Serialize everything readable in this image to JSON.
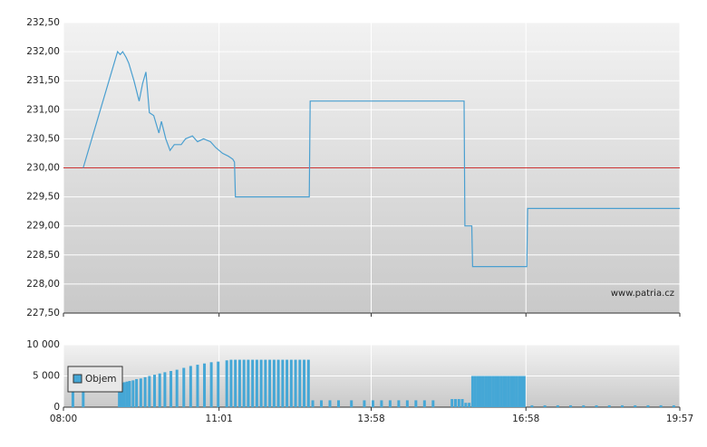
{
  "chart_data": [
    {
      "type": "line",
      "color": "#4a9fd0",
      "reference": 230,
      "reference_color": "#cc3333",
      "annotation": "www.patria.cz",
      "x": [
        "08:23",
        "09:03",
        "09:06",
        "09:09",
        "09:13",
        "09:16",
        "09:22",
        "09:28",
        "09:32",
        "09:36",
        "09:40",
        "09:45",
        "09:51",
        "09:54",
        "09:59",
        "10:04",
        "10:09",
        "10:17",
        "10:22",
        "10:30",
        "10:36",
        "10:43",
        "10:51",
        "10:57",
        "11:05",
        "11:12",
        "11:17",
        "11:19",
        "11:20",
        "12:46",
        "12:47",
        "15:46",
        "15:47",
        "15:55",
        "15:56",
        "16:59",
        "17:00",
        "19:57"
      ],
      "values": [
        230.0,
        232.0,
        231.95,
        232.0,
        231.9,
        231.8,
        231.5,
        231.15,
        231.45,
        231.65,
        230.95,
        230.9,
        230.6,
        230.8,
        230.5,
        230.3,
        230.4,
        230.4,
        230.5,
        230.55,
        230.45,
        230.5,
        230.45,
        230.35,
        230.25,
        230.2,
        230.15,
        230.1,
        229.5,
        229.5,
        231.15,
        231.15,
        229.0,
        229.0,
        228.3,
        228.3,
        229.3,
        229.3
      ],
      "ylim": [
        227.5,
        232.5
      ],
      "yticks": [
        {
          "value": 227.5,
          "label": "227,50"
        },
        {
          "value": 228,
          "label": "228,00"
        },
        {
          "value": 228.5,
          "label": "228,50"
        },
        {
          "value": 229,
          "label": "229,00"
        },
        {
          "value": 229.5,
          "label": "229,50"
        },
        {
          "value": 230,
          "label": "230,00"
        },
        {
          "value": 230.5,
          "label": "230,50"
        },
        {
          "value": 231,
          "label": "231,00"
        },
        {
          "value": 231.5,
          "label": "231,50"
        },
        {
          "value": 232,
          "label": "232,00"
        },
        {
          "value": 232.5,
          "label": "232,50"
        }
      ],
      "grid": true
    },
    {
      "type": "bar",
      "xlim": [
        "08:00",
        "19:57"
      ],
      "xticks": [
        "08:00",
        "11:01",
        "13:58",
        "16:58",
        "19:57"
      ],
      "x": [
        "08:11",
        "08:23",
        "09:05",
        "09:08",
        "09:11",
        "09:14",
        "09:17",
        "09:21",
        "09:25",
        "09:30",
        "09:35",
        "09:40",
        "09:46",
        "09:52",
        "09:58",
        "10:05",
        "10:12",
        "10:20",
        "10:28",
        "10:36",
        "10:44",
        "10:52",
        "11:00",
        "11:10",
        "11:15",
        "11:20",
        "11:25",
        "11:30",
        "11:35",
        "11:40",
        "11:45",
        "11:50",
        "11:55",
        "12:00",
        "12:05",
        "12:10",
        "12:15",
        "12:20",
        "12:25",
        "12:30",
        "12:35",
        "12:40",
        "12:45",
        "12:50",
        "13:00",
        "13:10",
        "13:20",
        "13:35",
        "13:50",
        "14:00",
        "14:10",
        "14:20",
        "14:30",
        "14:40",
        "14:50",
        "15:00",
        "15:10",
        "15:32",
        "15:36",
        "15:40",
        "15:44",
        "15:48",
        "15:52",
        "15:56",
        "15:59",
        "16:02",
        "16:05",
        "16:08",
        "16:11",
        "16:14",
        "16:17",
        "16:20",
        "16:23",
        "16:26",
        "16:29",
        "16:32",
        "16:35",
        "16:38",
        "16:41",
        "16:44",
        "16:47",
        "16:50",
        "16:53",
        "16:56",
        "17:05",
        "17:20",
        "17:35",
        "17:50",
        "18:05",
        "18:20",
        "18:35",
        "18:50",
        "19:05",
        "19:20",
        "19:35",
        "19:50"
      ],
      "series": [
        {
          "name": "Objem",
          "color": "#45a7d6",
          "values": [
            2900,
            2900,
            3800,
            3900,
            4000,
            4100,
            4200,
            4300,
            4500,
            4600,
            4800,
            5000,
            5200,
            5400,
            5600,
            5800,
            6000,
            6300,
            6600,
            6800,
            7000,
            7200,
            7300,
            7500,
            7600,
            7600,
            7600,
            7600,
            7600,
            7600,
            7600,
            7600,
            7600,
            7600,
            7600,
            7600,
            7600,
            7600,
            7600,
            7600,
            7600,
            7600,
            7600,
            1100,
            1100,
            1100,
            1100,
            1100,
            1100,
            1100,
            1100,
            1100,
            1100,
            1100,
            1100,
            1100,
            1100,
            1300,
            1300,
            1300,
            1300,
            700,
            700,
            5000,
            5000,
            5000,
            5000,
            5000,
            5000,
            5000,
            5000,
            5000,
            5000,
            5000,
            5000,
            5000,
            5000,
            5000,
            5000,
            5000,
            5000,
            5000,
            5000,
            5000,
            300,
            300,
            300,
            300,
            300,
            300,
            300,
            300,
            300,
            300,
            300,
            300
          ]
        }
      ],
      "ylim": [
        0,
        10000
      ],
      "yticks": [
        0,
        {
          "value": 5000,
          "label": "5 000"
        },
        {
          "value": 10000,
          "label": "10 000"
        }
      ],
      "grid": true
    }
  ]
}
